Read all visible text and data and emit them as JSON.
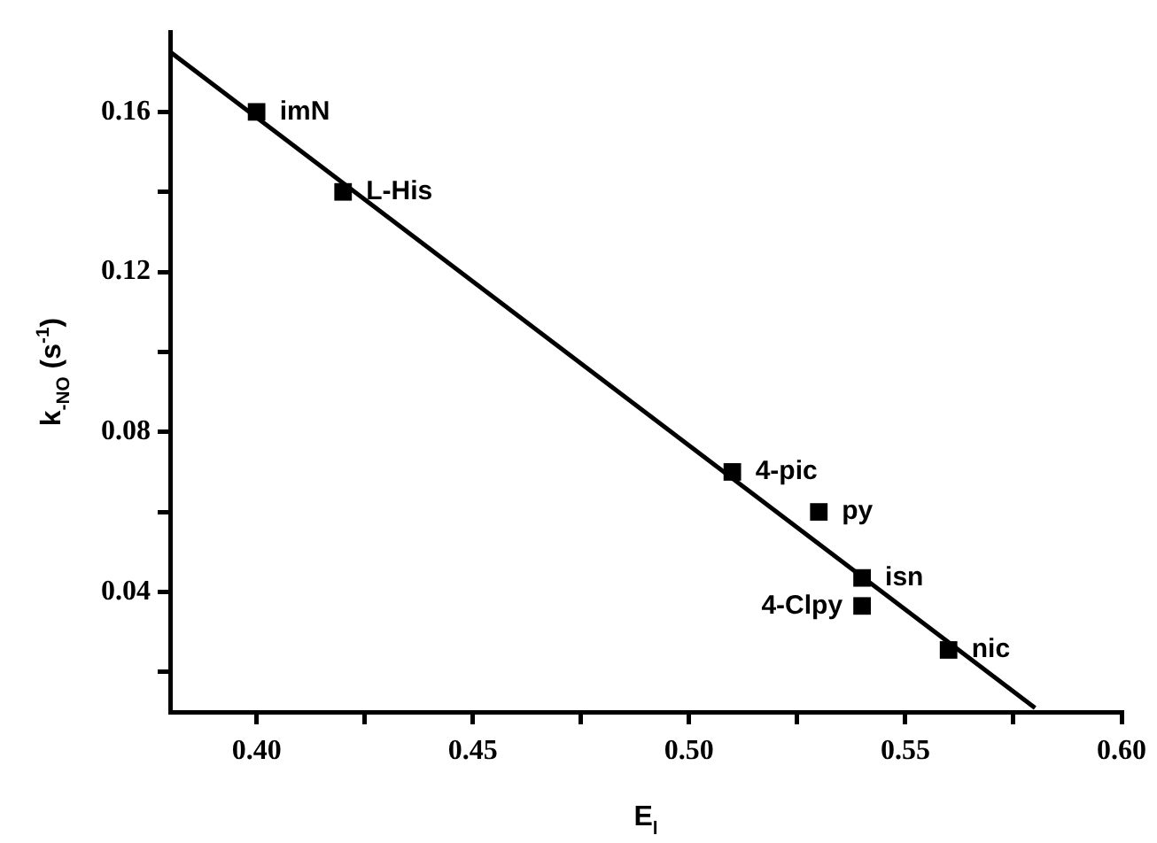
{
  "chart_data": {
    "type": "scatter",
    "xlabel": "E$_{l}$",
    "ylabel": "k$_{-NO}$ (s$^{-1}$)",
    "series": [
      {
        "color": "#000000",
        "marker": "square",
        "x": [
          0.4,
          0.42,
          0.51,
          0.53,
          0.54,
          0.54,
          0.56
        ],
        "values": [
          0.16,
          0.14,
          0.07,
          0.06,
          0.0435,
          0.0365,
          0.0255
        ]
      },
      {
        "type": "line",
        "color": "#000000",
        "marker": "none",
        "line_style": "solid",
        "x": [
          0.38,
          0.58
        ],
        "values": [
          0.175,
          0.011
        ]
      }
    ],
    "annotations": [
      {
        "text": "imN",
        "x": 0.4,
        "y": 0.16
      },
      {
        "text": "L-His",
        "x": 0.42,
        "y": 0.14
      },
      {
        "text": "4-pic",
        "x": 0.51,
        "y": 0.07
      },
      {
        "text": "py",
        "x": 0.53,
        "y": 0.06
      },
      {
        "text": "isn",
        "x": 0.54,
        "y": 0.0435
      },
      {
        "text": "4-Clpy",
        "x": 0.54,
        "y": 0.0365
      },
      {
        "text": "nic",
        "x": 0.56,
        "y": 0.0255
      }
    ],
    "xlim": [
      0.38,
      0.6
    ],
    "ylim": [
      0.01,
      0.18
    ],
    "xticks": [
      {
        "value": 0.4,
        "label": "0.40"
      },
      {
        "value": 0.425,
        "label": null
      },
      0.45,
      {
        "value": 0.475,
        "label": null
      },
      {
        "value": 0.5,
        "label": "0.50"
      },
      {
        "value": 0.525,
        "label": null
      },
      0.55,
      {
        "value": 0.575,
        "label": null
      },
      {
        "value": 0.6,
        "label": "0.60"
      }
    ],
    "yticks": [
      {
        "value": 0.02,
        "label": null
      },
      0.04,
      {
        "value": 0.06,
        "label": null
      },
      0.08,
      {
        "value": 0.1,
        "label": null
      },
      0.12,
      {
        "value": 0.14,
        "label": null
      },
      0.16
    ],
    "grid": false,
    "legend": false
  }
}
